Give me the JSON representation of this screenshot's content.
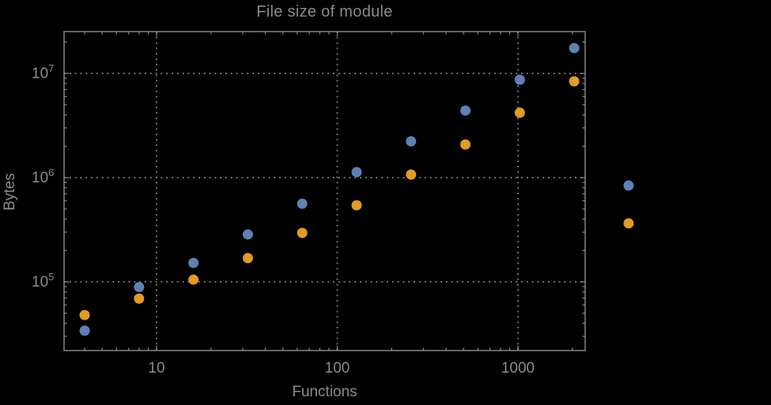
{
  "title": "File size of module",
  "chart_data": {
    "type": "scatter",
    "title": "File size of module",
    "xlabel": "Functions",
    "ylabel": "Bytes",
    "x_scale": "log",
    "y_scale": "log",
    "xlim": [
      3.1,
      2360
    ],
    "ylim": [
      22000,
      25500000
    ],
    "grid": "dotted-at-decades",
    "legend_position": "none",
    "x": [
      4,
      8,
      16,
      32,
      64,
      128,
      256,
      512,
      1024,
      2048,
      4096
    ],
    "series": [
      {
        "name": "series-blue",
        "color": "#5e81b5",
        "values": [
          34000,
          89000,
          152000,
          285000,
          562000,
          1130000,
          2230000,
          4400000,
          8700000,
          17500000,
          840000
        ]
      },
      {
        "name": "series-orange",
        "color": "#e19c24",
        "values": [
          48000,
          69000,
          105000,
          169000,
          295000,
          543000,
          1070000,
          2080000,
          4200000,
          8400000,
          364000
        ]
      }
    ],
    "x_ticks": {
      "major": [
        10,
        100,
        1000
      ],
      "labels": [
        "10",
        "100",
        "1000"
      ],
      "minor": [
        4,
        5,
        6,
        7,
        8,
        9,
        20,
        30,
        40,
        50,
        60,
        70,
        80,
        90,
        200,
        300,
        400,
        500,
        600,
        700,
        800,
        900,
        2000
      ]
    },
    "y_ticks": {
      "major": [
        100000,
        1000000,
        10000000
      ],
      "labels": [
        [
          "10",
          "5"
        ],
        [
          "10",
          "6"
        ],
        [
          "10",
          "7"
        ]
      ],
      "minor": [
        30000,
        40000,
        50000,
        60000,
        70000,
        80000,
        90000,
        200000,
        300000,
        400000,
        500000,
        600000,
        700000,
        800000,
        900000,
        2000000,
        3000000,
        4000000,
        5000000,
        6000000,
        7000000,
        8000000,
        9000000,
        20000000
      ]
    }
  },
  "style": {
    "background": "#000000",
    "frame_color": "#858585",
    "grid_color": "#6f6f6f",
    "text_color": "#8b8b8b",
    "point_radius": 6.5,
    "series_blue": "#5e81b5",
    "series_orange": "#e19c24"
  }
}
